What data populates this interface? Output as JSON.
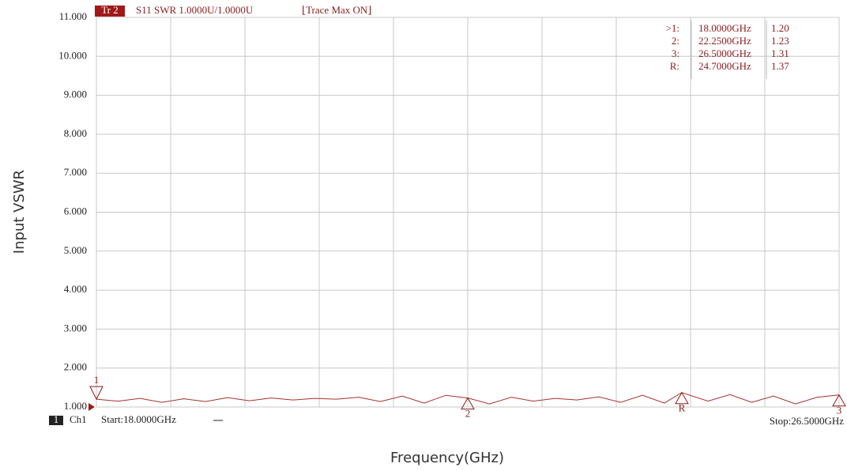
{
  "chart_data": {
    "type": "line",
    "header": {
      "trace": "Tr 2",
      "info": "S11 SWR 1.0000U/1.0000U",
      "mode": "⌊Trace Max ON⌋"
    },
    "footer": {
      "channel_number": "1",
      "channel": "Ch1",
      "start": "Start:18.0000GHz",
      "stop": "Stop:26.5000GHz"
    },
    "y_label": "Input VSWR",
    "x_label": "Frequency(GHz)",
    "xlim": [
      18,
      26.5
    ],
    "ylim": [
      1,
      11
    ],
    "xticks": [
      18,
      18.85,
      19.7,
      20.55,
      21.4,
      22.25,
      23.1,
      23.95,
      24.8,
      25.65,
      26.5
    ],
    "xtick_labels": false,
    "yticks": [
      {
        "value": 1,
        "label": "1.000"
      },
      {
        "value": 2,
        "label": "2.000"
      },
      {
        "value": 3,
        "label": "3.000"
      },
      {
        "value": 4,
        "label": "4.000"
      },
      {
        "value": 5,
        "label": "5.000"
      },
      {
        "value": 6,
        "label": "6.000"
      },
      {
        "value": 7,
        "label": "7.000"
      },
      {
        "value": 8,
        "label": "8.000"
      },
      {
        "value": 9,
        "label": "9.000"
      },
      {
        "value": 10,
        "label": "10.000"
      },
      {
        "value": 11,
        "label": "11.000"
      }
    ],
    "grid": true,
    "x": [
      18,
      18.25,
      18.5,
      18.75,
      19,
      19.25,
      19.5,
      19.75,
      20,
      20.25,
      20.5,
      20.75,
      21,
      21.25,
      21.5,
      21.75,
      22,
      22.25,
      22.5,
      22.75,
      23,
      23.25,
      23.5,
      23.75,
      24,
      24.25,
      24.5,
      24.7,
      25,
      25.25,
      25.5,
      25.75,
      26,
      26.25,
      26.5
    ],
    "series": [
      {
        "color": "#a8302c",
        "values": [
          1.2,
          1.15,
          1.22,
          1.12,
          1.21,
          1.14,
          1.24,
          1.16,
          1.23,
          1.18,
          1.22,
          1.2,
          1.25,
          1.14,
          1.28,
          1.1,
          1.3,
          1.23,
          1.08,
          1.25,
          1.15,
          1.22,
          1.18,
          1.26,
          1.12,
          1.3,
          1.1,
          1.37,
          1.15,
          1.32,
          1.12,
          1.28,
          1.08,
          1.25,
          1.31
        ]
      }
    ],
    "markers": [
      {
        "name": "1",
        "row_label": ">1:",
        "freq": 18,
        "freq_label": "18.0000GHz",
        "value": 1.2,
        "value_label": "1.20"
      },
      {
        "name": "2",
        "row_label": "2:",
        "freq": 22.25,
        "freq_label": "22.2500GHz",
        "value": 1.23,
        "value_label": "1.23"
      },
      {
        "name": "3",
        "row_label": "3:",
        "freq": 26.5,
        "freq_label": "26.5000GHz",
        "value": 1.31,
        "value_label": "1.31"
      },
      {
        "name": "R",
        "row_label": "R:",
        "freq": 24.7,
        "freq_label": "24.7000GHz",
        "value": 1.37,
        "value_label": "1.37"
      }
    ]
  }
}
